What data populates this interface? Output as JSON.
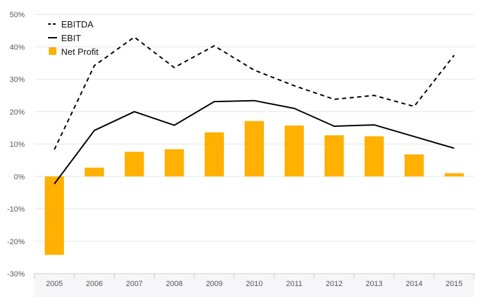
{
  "chart_data": {
    "type": "bar",
    "categories": [
      "2005",
      "2006",
      "2007",
      "2008",
      "2009",
      "2010",
      "2011",
      "2012",
      "2013",
      "2014",
      "2015"
    ],
    "series": [
      {
        "name": "Net Profit",
        "kind": "bar",
        "color": "#FFB000",
        "values": [
          -24.2,
          2.7,
          7.6,
          8.4,
          13.6,
          17.1,
          15.7,
          12.7,
          12.4,
          6.8,
          1.0
        ]
      },
      {
        "name": "EBIT",
        "kind": "line",
        "style": "solid",
        "color": "#000000",
        "values": [
          -2.3,
          14.2,
          20.0,
          15.8,
          23.1,
          23.4,
          21.0,
          15.5,
          15.9,
          12.3,
          8.7
        ]
      },
      {
        "name": "EBITDA",
        "kind": "line",
        "style": "dashed",
        "color": "#000000",
        "values": [
          8.3,
          34.2,
          43.0,
          33.6,
          40.3,
          32.8,
          28.0,
          23.8,
          25.0,
          21.6,
          37.4
        ]
      }
    ],
    "y_ticks": [
      "50%",
      "40%",
      "30%",
      "20%",
      "10%",
      "0%",
      "-10%",
      "-20%",
      "-30%"
    ],
    "ylim": [
      -30,
      50
    ],
    "grid": true,
    "legend": {
      "placement": "top-left",
      "order": [
        "EBITDA",
        "EBIT",
        "Net Profit"
      ]
    },
    "title": "",
    "xlabel": "",
    "ylabel": ""
  }
}
